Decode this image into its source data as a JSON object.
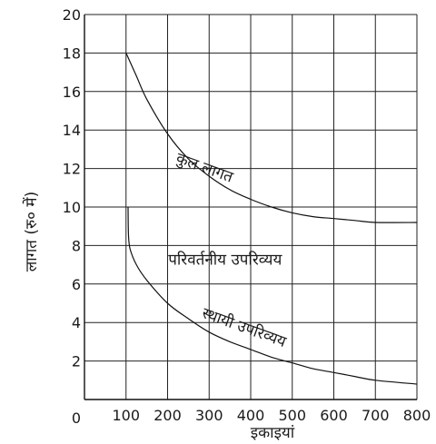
{
  "chart_data": {
    "type": "line",
    "xlabel": "इकाइयां",
    "ylabel": "लागत (रु० में)",
    "xlim": [
      0,
      800
    ],
    "ylim": [
      0,
      20
    ],
    "x_ticks": [
      100,
      200,
      300,
      400,
      500,
      600,
      700,
      800
    ],
    "y_ticks": [
      2,
      4,
      6,
      8,
      10,
      12,
      14,
      16,
      18,
      20
    ],
    "origin_label": "0",
    "grid": true,
    "series": [
      {
        "name": "कुल लागत",
        "points": [
          [
            100,
            18
          ],
          [
            125,
            16.8
          ],
          [
            150,
            15.6
          ],
          [
            200,
            13.8
          ],
          [
            250,
            12.5
          ],
          [
            300,
            11.6
          ],
          [
            350,
            10.9
          ],
          [
            400,
            10.4
          ],
          [
            450,
            10.0
          ],
          [
            500,
            9.7
          ],
          [
            550,
            9.5
          ],
          [
            600,
            9.4
          ],
          [
            650,
            9.3
          ],
          [
            700,
            9.2
          ],
          [
            800,
            9.2
          ]
        ]
      },
      {
        "name": "स्थायी उपरिव्यय",
        "points": [
          [
            105,
            10
          ],
          [
            106,
            8.5
          ],
          [
            110,
            7.8
          ],
          [
            125,
            7.0
          ],
          [
            150,
            6.2
          ],
          [
            200,
            5.0
          ],
          [
            250,
            4.2
          ],
          [
            300,
            3.5
          ],
          [
            350,
            3.0
          ],
          [
            400,
            2.6
          ],
          [
            450,
            2.2
          ],
          [
            500,
            1.9
          ],
          [
            550,
            1.6
          ],
          [
            600,
            1.4
          ],
          [
            650,
            1.2
          ],
          [
            700,
            1.0
          ],
          [
            800,
            0.8
          ]
        ]
      }
    ],
    "annotations": [
      {
        "text": "कुल लागत",
        "x": 285,
        "y": 11.8,
        "angle": 20
      },
      {
        "text": "परिवर्तनीय उपरिव्यय",
        "x": 475,
        "y": 7.0,
        "angle": 0
      },
      {
        "text": "स्थायी उपरिव्यय",
        "x": 380,
        "y": 3.5,
        "angle": 20
      }
    ]
  }
}
